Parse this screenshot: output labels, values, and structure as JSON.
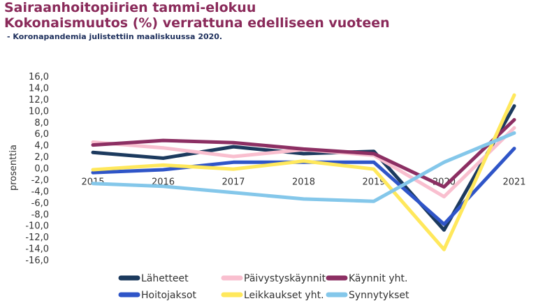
{
  "header": {
    "title_line1": "Sairaanhoitopiirien tammi-elokuu",
    "title_line2": "Kokonaismuutos (%) verrattuna edelliseen vuoteen",
    "subtitle": "- Koronapandemia julistettiin maaliskuussa 2020."
  },
  "chart_data": {
    "type": "line",
    "ylabel": "prosenttia",
    "ylim": [
      -16,
      16
    ],
    "yticks": [
      16,
      14,
      12,
      10,
      8,
      6,
      4,
      2,
      0,
      -2,
      -4,
      -6,
      -8,
      -10,
      -12,
      -14,
      -16
    ],
    "ytick_labels": [
      "16,0",
      "14,0",
      "12,0",
      "10,0",
      "8,0",
      "6,0",
      "4,0",
      "2,0",
      "0,0",
      "-2,0",
      "-4,0",
      "-6,0",
      "-8,0",
      "-10,0",
      "-12,0",
      "-14,0",
      "-16,0"
    ],
    "categories": [
      "2015",
      "2016",
      "2017",
      "2018",
      "2019",
      "2020",
      "2021"
    ],
    "legend_position": "bottom",
    "grid": false,
    "series": [
      {
        "name": "Lähetteet",
        "color": "#1c3a5e",
        "values": [
          2.7,
          1.7,
          3.7,
          2.5,
          2.9,
          -10.8,
          10.8
        ]
      },
      {
        "name": "Päivystyskäynnit",
        "color": "#f9bfcf",
        "values": [
          4.5,
          3.5,
          2.0,
          3.2,
          2.2,
          -5.0,
          7.0
        ]
      },
      {
        "name": "Käynnit yht.",
        "color": "#8c2f63",
        "values": [
          4.0,
          4.8,
          4.4,
          3.3,
          2.5,
          -3.3,
          8.4
        ]
      },
      {
        "name": "Hoitojaksot",
        "color": "#2f55c8",
        "values": [
          -0.8,
          -0.3,
          1.0,
          1.0,
          1.0,
          -9.8,
          3.4
        ]
      },
      {
        "name": "Leikkaukset yht.",
        "color": "#ffe85c",
        "values": [
          -0.3,
          0.5,
          -0.2,
          1.2,
          -0.2,
          -14.2,
          12.7
        ]
      },
      {
        "name": "Synnytykset",
        "color": "#84c7ea",
        "values": [
          -2.7,
          -3.2,
          -4.3,
          -5.4,
          -5.8,
          1.0,
          6.1
        ]
      }
    ]
  }
}
